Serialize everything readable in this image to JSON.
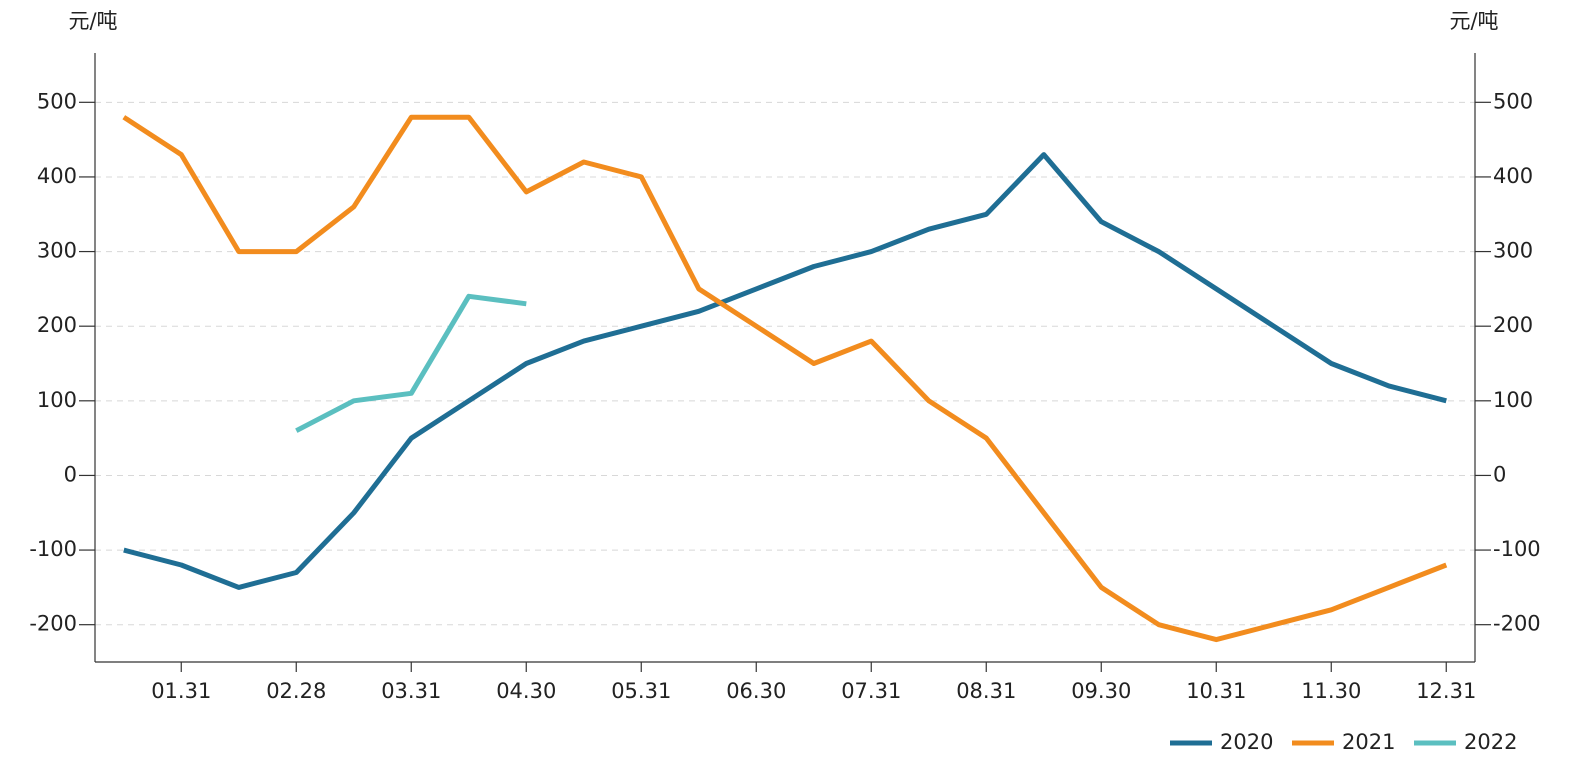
{
  "chart_data": {
    "type": "line",
    "y_label": "元/吨",
    "y2_label": "元/吨",
    "categories": [
      null,
      "01.31",
      null,
      "02.28",
      null,
      "03.31",
      null,
      "04.30",
      null,
      "05.31",
      null,
      "06.30",
      null,
      "07.31",
      null,
      "08.31",
      null,
      "09.30",
      null,
      "10.31",
      null,
      "11.30",
      null,
      "12.31"
    ],
    "series": [
      {
        "name": "2020",
        "color": "#1f6e94",
        "values": [
          -100,
          -120,
          -150,
          -130,
          -50,
          50,
          100,
          150,
          180,
          200,
          220,
          250,
          280,
          300,
          330,
          350,
          430,
          340,
          300,
          250,
          200,
          150,
          120,
          100
        ]
      },
      {
        "name": "2021",
        "color": "#f28c1e",
        "values": [
          480,
          430,
          300,
          300,
          360,
          480,
          480,
          380,
          420,
          400,
          250,
          200,
          150,
          180,
          100,
          50,
          -50,
          -150,
          -200,
          -220,
          -200,
          -180,
          -150,
          -120
        ]
      },
      {
        "name": "2022",
        "color": "#5bbfc0",
        "values": [
          null,
          null,
          null,
          60,
          100,
          110,
          240,
          230,
          null,
          null,
          null,
          null,
          null,
          null,
          null,
          null,
          null,
          null,
          null,
          null,
          null,
          null,
          null,
          null
        ]
      }
    ],
    "ylim": [
      -250,
      550
    ],
    "yticks": [
      -200,
      -100,
      0,
      100,
      200,
      300,
      400,
      500
    ],
    "y2lim": [
      -250,
      550
    ],
    "y2ticks": [
      -200,
      -100,
      0,
      100,
      200,
      300,
      400,
      500
    ],
    "grid": true
  }
}
